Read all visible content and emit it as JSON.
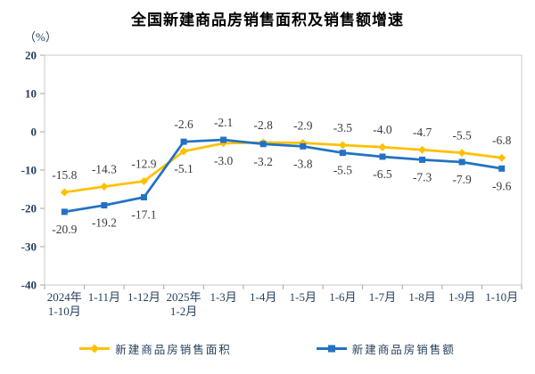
{
  "title": "全国新建商品房销售面积及销售额增速",
  "unit_label": "（%）",
  "chart_data": {
    "type": "line",
    "categories": [
      "2024年\n1-10月",
      "1-11月",
      "1-12月",
      "2025年\n1-2月",
      "1-3月",
      "1-4月",
      "1-5月",
      "1-6月",
      "1-7月",
      "1-8月",
      "1-9月",
      "1-10月"
    ],
    "series": [
      {
        "name": "新建商品房销售面积",
        "color": "#FFC000",
        "marker": "diamond",
        "values": [
          -15.8,
          -14.3,
          -12.9,
          -5.1,
          -3.0,
          -2.8,
          -2.9,
          -3.5,
          -4.0,
          -4.7,
          -5.5,
          -6.8
        ]
      },
      {
        "name": "新建商品房销售额",
        "color": "#2272C3",
        "marker": "square",
        "values": [
          -20.9,
          -19.2,
          -17.1,
          -2.6,
          -2.1,
          -3.2,
          -3.8,
          -5.5,
          -6.5,
          -7.3,
          -7.9,
          -9.6
        ]
      }
    ],
    "title": "全国新建商品房销售面积及销售额增速",
    "ylabel": "（%）",
    "xlabel": "",
    "ylim": [
      -40,
      20
    ],
    "ytick_step": 10,
    "yticks": [
      20,
      10,
      0,
      -10,
      -20,
      -30,
      -40
    ],
    "grid": false,
    "data_labels": true,
    "legend_position": "bottom"
  },
  "colors": {
    "axis_border": "#C9C9C9",
    "tick": "#A6A6A6",
    "tick_label": "#26405E",
    "data_label": "#3A3A3A",
    "title": "#000000"
  }
}
